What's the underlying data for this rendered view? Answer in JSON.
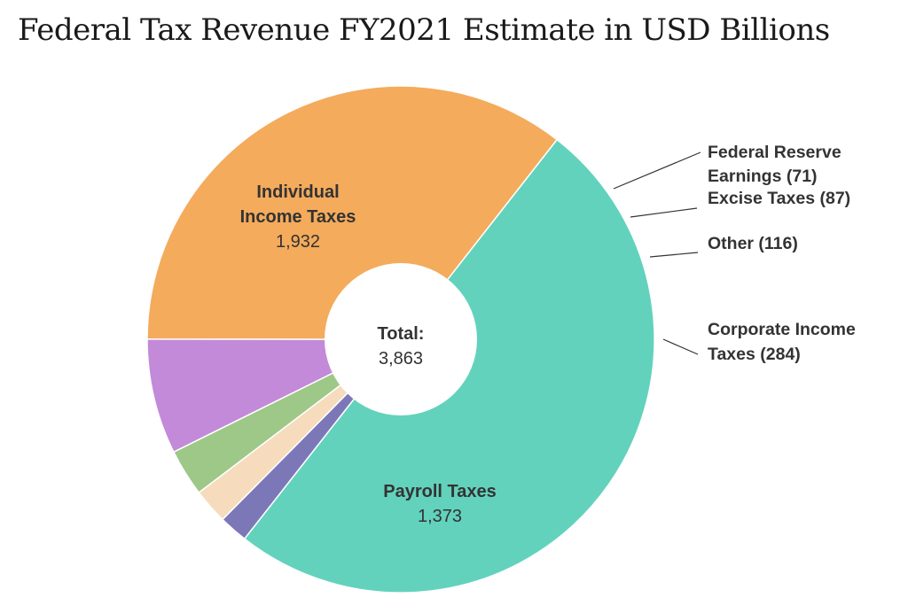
{
  "chart_data": {
    "type": "pie",
    "title": "Federal Tax Revenue FY2021 Estimate in USD Billions",
    "center_label": "Total:",
    "total": "3,863",
    "slices": [
      {
        "name": "Individual Income Taxes",
        "value": 1932,
        "value_label": "1,932",
        "color": "#62d2bd"
      },
      {
        "name": "Federal Reserve Earnings",
        "value": 71,
        "value_label": "71",
        "color": "#7c78b8"
      },
      {
        "name": "Excise Taxes",
        "value": 87,
        "value_label": "87",
        "color": "#f6dcbd"
      },
      {
        "name": "Other",
        "value": 116,
        "value_label": "116",
        "color": "#9dc888"
      },
      {
        "name": "Corporate Income Taxes",
        "value": 284,
        "value_label": "284",
        "color": "#c38ad9"
      },
      {
        "name": "Payroll Taxes",
        "value": 1373,
        "value_label": "1,373",
        "color": "#f4ab5c"
      }
    ],
    "labels": {
      "individual": {
        "line1": "Individual",
        "line2": "Income Taxes",
        "value": "1,932"
      },
      "payroll": {
        "line1": "Payroll Taxes",
        "value": "1,373"
      },
      "fed_reserve": {
        "line1": "Federal Reserve",
        "line2": "Earnings (71)"
      },
      "excise": {
        "line1": "Excise Taxes (87)"
      },
      "other": {
        "line1": "Other (116)"
      },
      "corporate": {
        "line1": "Corporate Income",
        "line2": "Taxes (284)"
      }
    }
  }
}
